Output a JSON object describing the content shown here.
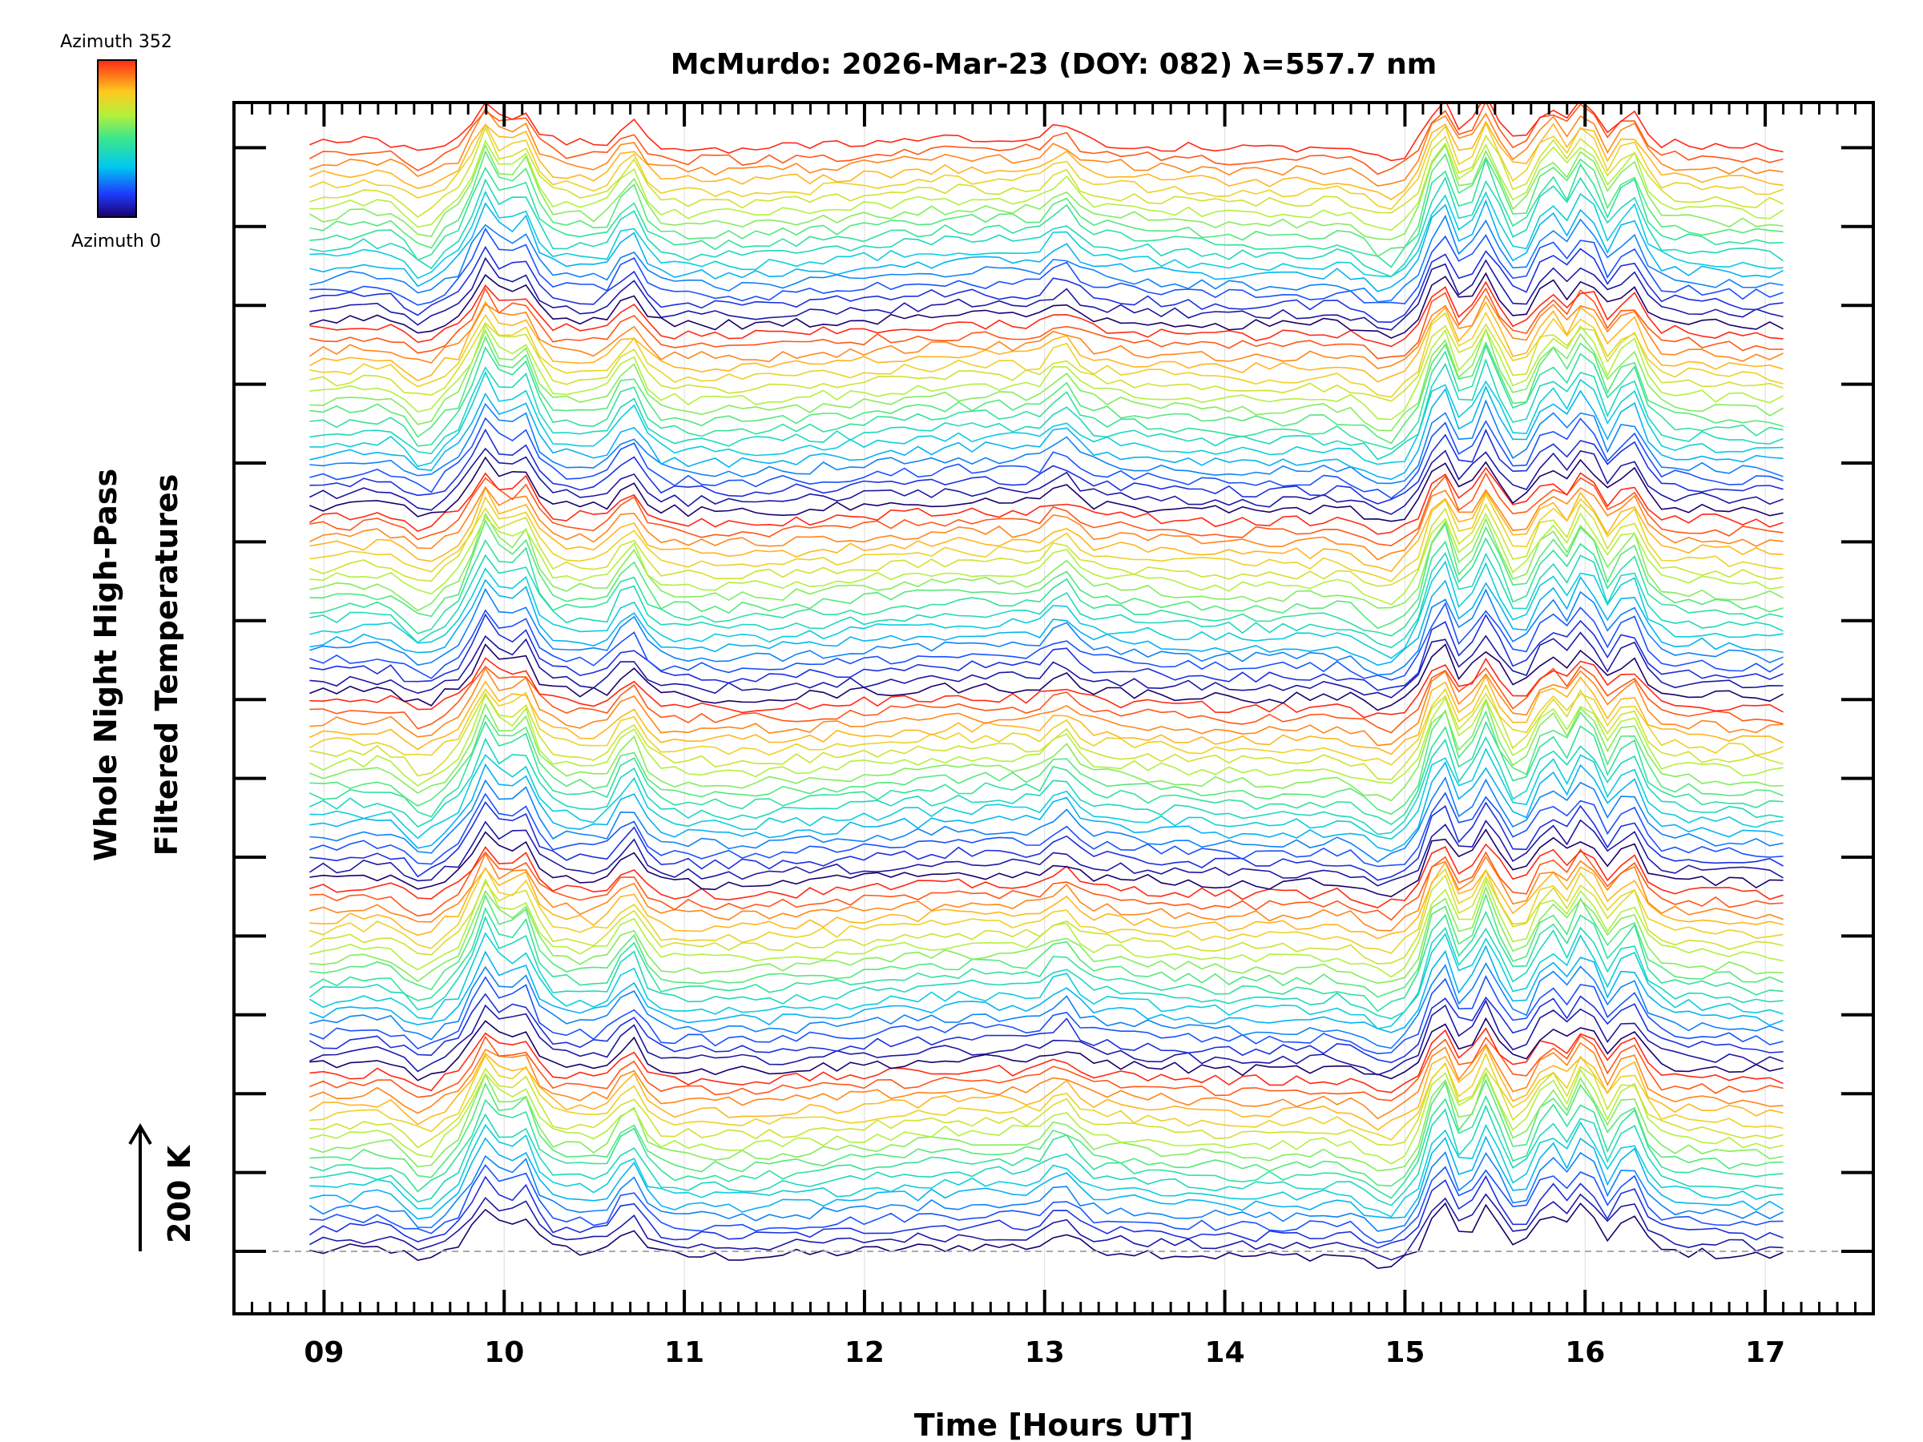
{
  "chart_data": {
    "type": "line",
    "title": "McMurdo: 2026-Mar-23 (DOY: 082) λ=557.7 nm",
    "xlabel": "Time [Hours UT]",
    "ylabel_line1": "Whole Night High-Pass",
    "ylabel_line2": "Filtered Temperatures",
    "scale_label": "200 K",
    "xlim": [
      8.5,
      17.6
    ],
    "x_range": [
      8.92,
      17.1
    ],
    "x_ticks": [
      "09",
      "10",
      "11",
      "12",
      "13",
      "14",
      "15",
      "16",
      "17"
    ],
    "x_tick_values": [
      9,
      10,
      11,
      12,
      13,
      14,
      15,
      16,
      17
    ],
    "colorbar": {
      "top_label": "Azimuth 352",
      "bottom_label": "Azimuth 0",
      "min": 0,
      "max": 352
    },
    "series_groups": 6,
    "series_per_group": 18,
    "azimuth_step_deg": 20,
    "event_windows_hours_ut": [
      {
        "center": 9.9,
        "amplitude": 1.2
      },
      {
        "center": 10.1,
        "amplitude": 1.0
      },
      {
        "center": 10.7,
        "amplitude": 0.8
      },
      {
        "center": 13.1,
        "amplitude": 0.45
      },
      {
        "center": 15.2,
        "amplitude": 1.3
      },
      {
        "center": 15.45,
        "amplitude": 1.2
      },
      {
        "center": 15.8,
        "amplitude": 1.0
      },
      {
        "center": 16.0,
        "amplitude": 1.2
      },
      {
        "center": 16.25,
        "amplitude": 1.0
      }
    ]
  }
}
